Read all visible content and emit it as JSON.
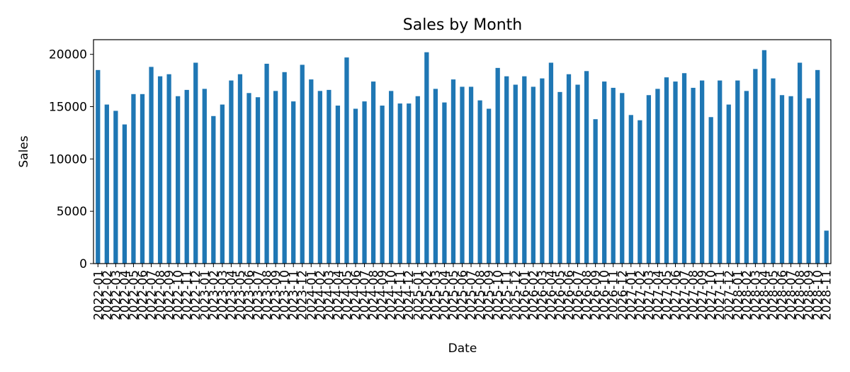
{
  "chart_data": {
    "type": "bar",
    "title": "Sales by Month",
    "xlabel": "Date",
    "ylabel": "Sales",
    "ylim": [
      0,
      21400
    ],
    "yticks": [
      0,
      5000,
      10000,
      15000,
      20000
    ],
    "bar_color": "#1f77b4",
    "grid": false,
    "legend": "none",
    "categories": [
      "2022-01",
      "2022-02",
      "2022-03",
      "2022-04",
      "2022-05",
      "2022-06",
      "2022-07",
      "2022-08",
      "2022-09",
      "2022-10",
      "2022-11",
      "2022-12",
      "2023-01",
      "2023-02",
      "2023-03",
      "2023-04",
      "2023-05",
      "2023-06",
      "2023-07",
      "2023-08",
      "2023-09",
      "2023-10",
      "2023-11",
      "2023-12",
      "2024-01",
      "2024-02",
      "2024-03",
      "2024-04",
      "2024-05",
      "2024-06",
      "2024-07",
      "2024-08",
      "2024-09",
      "2024-10",
      "2024-11",
      "2024-12",
      "2025-01",
      "2025-02",
      "2025-03",
      "2025-04",
      "2025-05",
      "2025-06",
      "2025-07",
      "2025-08",
      "2025-09",
      "2025-10",
      "2025-11",
      "2025-12",
      "2026-01",
      "2026-02",
      "2026-03",
      "2026-04",
      "2026-05",
      "2026-06",
      "2026-07",
      "2026-08",
      "2026-09",
      "2026-10",
      "2026-11",
      "2026-12",
      "2027-01",
      "2027-02",
      "2027-03",
      "2027-04",
      "2027-05",
      "2027-06",
      "2027-07",
      "2027-08",
      "2027-09",
      "2027-10",
      "2027-11",
      "2027-12",
      "2028-01",
      "2028-02",
      "2028-03",
      "2028-04",
      "2028-05",
      "2028-06",
      "2028-07",
      "2028-08",
      "2028-09",
      "2028-10",
      "2028-11"
    ],
    "values": [
      18500,
      15200,
      14600,
      13300,
      16200,
      16200,
      18800,
      17900,
      18100,
      16000,
      16600,
      19200,
      16700,
      14100,
      15200,
      17500,
      18100,
      16300,
      15900,
      19100,
      16500,
      18300,
      15500,
      19000,
      17600,
      16500,
      16600,
      15100,
      19700,
      14800,
      15500,
      17400,
      15100,
      16500,
      15300,
      15300,
      16000,
      20200,
      16700,
      15400,
      17600,
      16900,
      16900,
      15600,
      14800,
      18700,
      17900,
      17100,
      17900,
      16900,
      17700,
      19200,
      16400,
      18100,
      17100,
      18400,
      13800,
      17400,
      16800,
      16300,
      14200,
      13700,
      16100,
      16700,
      17800,
      17400,
      18200,
      16800,
      17500,
      14000,
      17500,
      15200,
      17500,
      16500,
      18600,
      20400,
      17700,
      16100,
      16000,
      19200,
      15800,
      18500,
      3150
    ]
  }
}
